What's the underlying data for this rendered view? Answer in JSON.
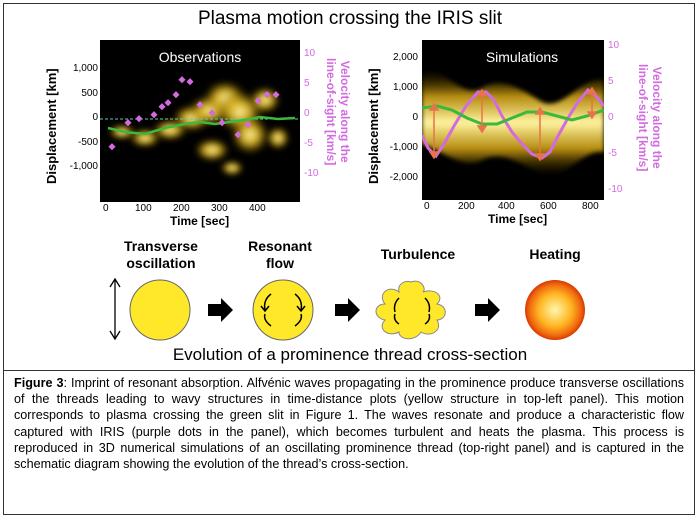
{
  "figure_title": "Plasma motion crossing the IRIS slit",
  "left_panel": {
    "title": "Observations",
    "ylabel": "Displacement [km]",
    "ylabel_right": [
      "Velocity along the",
      "line-of-sight [km/s]"
    ],
    "xlabel": "Time [sec]",
    "y_ticks": [
      "1,000",
      "500",
      "0",
      "-500",
      "-1,000"
    ],
    "y_ticks_right": [
      "10",
      "5",
      "0",
      "-5",
      "-10"
    ],
    "x_ticks": [
      "0",
      "100",
      "200",
      "300",
      "400"
    ]
  },
  "right_panel": {
    "title": "Simulations",
    "ylabel": "Displacement [km]",
    "ylabel_right": [
      "Velocity along the",
      "line-of-sight [km/s]"
    ],
    "xlabel": "Time [sec]",
    "y_ticks": [
      "2,000",
      "1,000",
      "0",
      "-1,000",
      "-2,000"
    ],
    "y_ticks_right": [
      "10",
      "5",
      "0",
      "-5",
      "-10"
    ],
    "x_ticks": [
      "0",
      "200",
      "400",
      "600",
      "800"
    ]
  },
  "stages": [
    {
      "label_line1": "Transverse",
      "label_line2": "oscillation"
    },
    {
      "label_line1": "Resonant",
      "label_line2": "flow"
    },
    {
      "label_line1": "Turbulence",
      "label_line2": ""
    },
    {
      "label_line1": "Heating",
      "label_line2": ""
    }
  ],
  "evolution_label": "Evolution of a prominence thread cross-section",
  "caption": {
    "label": "Figure 3",
    "text": ": Imprint of resonant absorption. Alfvénic waves propagating in the prominence produce transverse oscillations of the threads leading to wavy structures in time-distance plots (yellow structure in top-left panel). This motion corresponds to plasma crossing the green slit in Figure 1. The waves resonate and produce a characteristic flow captured with IRIS (purple dots in the panel), which becomes turbulent and heats the plasma. This process is reproduced in 3D numerical simulations of an oscillating prominence thread (top-right panel) and is captured in the schematic diagram showing the evolution of the thread’s cross-section."
  },
  "colors": {
    "accent_purple": "#d36be0",
    "green": "#3cb93c",
    "yellow": "#ffe82a",
    "arrow_red": "#e8734a"
  }
}
